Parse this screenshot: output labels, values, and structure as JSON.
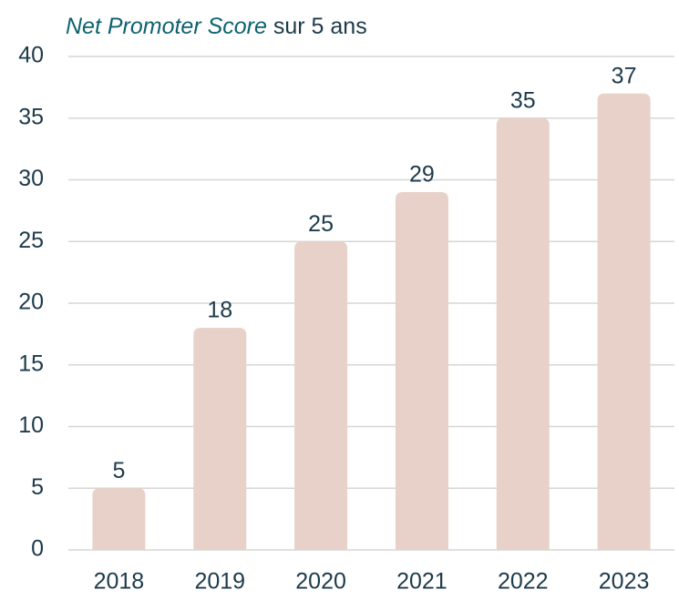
{
  "chart_data": {
    "type": "bar",
    "title": [
      "Net Promoter Score",
      "sur 5 ans"
    ],
    "categories": [
      "2018",
      "2019",
      "2020",
      "2021",
      "2022",
      "2023"
    ],
    "values": [
      5,
      18,
      25,
      29,
      35,
      37
    ],
    "color": "#e8d1c8",
    "ylim": [
      0,
      40
    ],
    "yticks": [
      0,
      5,
      10,
      15,
      20,
      25,
      30,
      35,
      40
    ],
    "grid": true
  }
}
